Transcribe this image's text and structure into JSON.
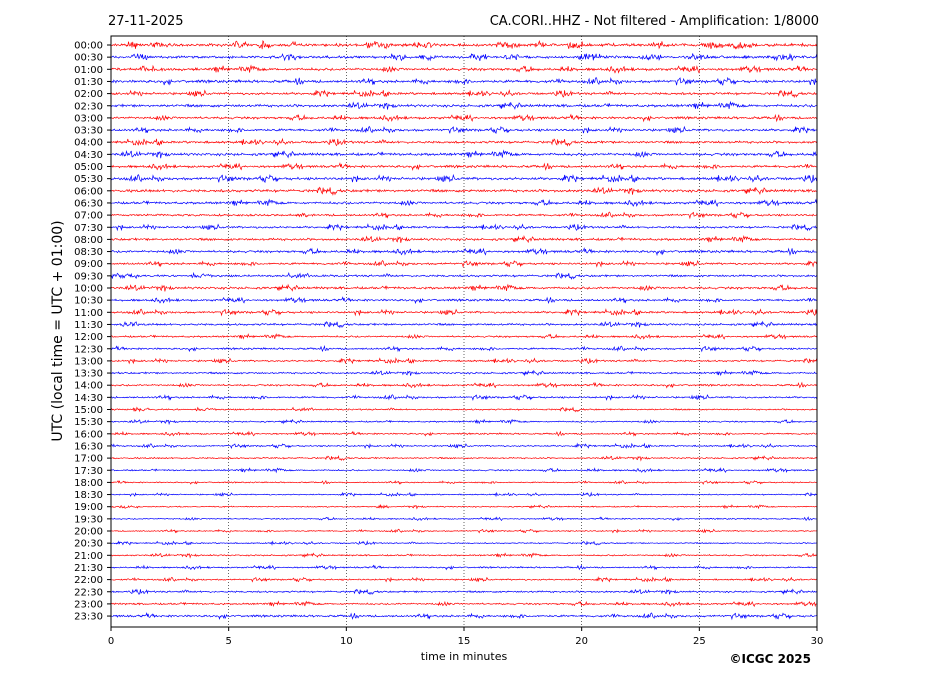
{
  "header": {
    "date": "27-11-2025",
    "title": "CA.CORI..HHZ - Not filtered - Amplification: 1/8000"
  },
  "footer": {
    "copyright": "©ICGC 2025"
  },
  "chart_data": {
    "type": "line",
    "title": "CA.CORI..HHZ - Not filtered - Amplification: 1/8000",
    "xlabel": "time in minutes",
    "ylabel": "UTC (local time = UTC + 01:00)",
    "xlim": [
      0,
      30
    ],
    "xticks": [
      0,
      5,
      10,
      15,
      20,
      25,
      30
    ],
    "grid": "vertical dotted lines at every 5 minutes",
    "colors": {
      "even_rows": "#ff0000",
      "odd_rows": "#0000ff"
    },
    "rows": [
      "00:00",
      "00:30",
      "01:00",
      "01:30",
      "02:00",
      "02:30",
      "03:00",
      "03:30",
      "04:00",
      "04:30",
      "05:00",
      "05:30",
      "06:00",
      "06:30",
      "07:00",
      "07:30",
      "08:00",
      "08:30",
      "09:00",
      "09:30",
      "10:00",
      "10:30",
      "11:00",
      "11:30",
      "12:00",
      "12:30",
      "13:00",
      "13:30",
      "14:00",
      "14:30",
      "15:00",
      "15:30",
      "16:00",
      "16:30",
      "17:00",
      "17:30",
      "18:00",
      "18:30",
      "19:00",
      "19:30",
      "20:00",
      "20:30",
      "21:00",
      "21:30",
      "22:00",
      "22:30",
      "23:00",
      "23:30"
    ],
    "noise_level": [
      1.0,
      0.9,
      0.9,
      0.9,
      0.8,
      0.9,
      0.8,
      0.8,
      0.8,
      0.9,
      0.8,
      0.9,
      0.9,
      0.8,
      0.7,
      0.7,
      0.8,
      0.8,
      0.7,
      0.7,
      0.8,
      0.7,
      0.7,
      0.7,
      0.6,
      0.6,
      0.6,
      0.6,
      0.6,
      0.6,
      0.5,
      0.5,
      0.5,
      0.5,
      0.5,
      0.5,
      0.4,
      0.4,
      0.4,
      0.4,
      0.4,
      0.4,
      0.5,
      0.5,
      0.5,
      0.6,
      0.6,
      0.7
    ]
  }
}
